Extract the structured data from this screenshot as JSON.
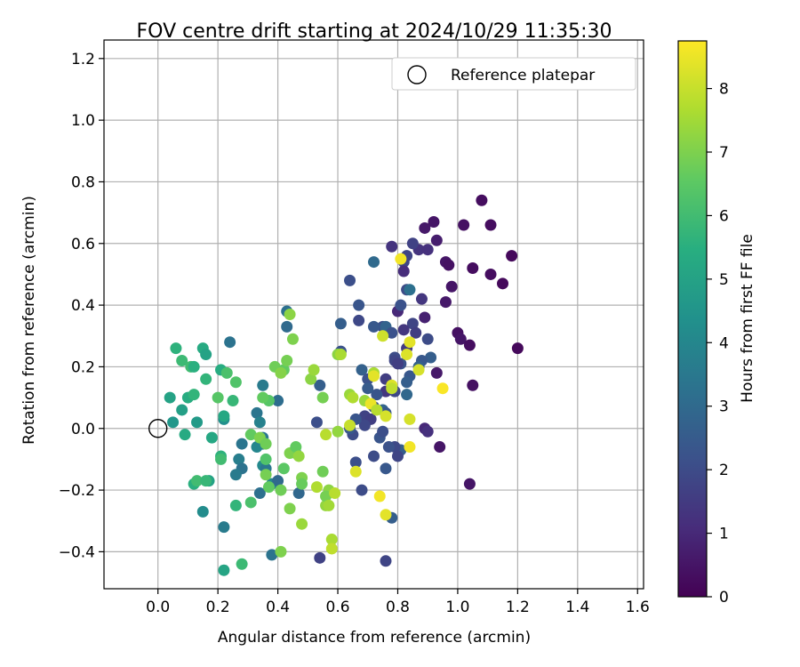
{
  "chart_data": {
    "type": "scatter",
    "title": "FOV centre drift starting at 2024/10/29 11:35:30",
    "xlabel": "Angular distance from reference (arcmin)",
    "ylabel": "Rotation from reference (arcmin)",
    "xlim": [
      -0.18,
      1.62
    ],
    "ylim": [
      -0.52,
      1.26
    ],
    "xticks": [
      "0.0",
      "0.2",
      "0.4",
      "0.6",
      "0.8",
      "1.0",
      "1.2",
      "1.4",
      "1.6"
    ],
    "xtick_values": [
      0,
      0.2,
      0.4,
      0.6,
      0.8,
      1.0,
      1.2,
      1.4,
      1.6
    ],
    "yticks": [
      "−0.4",
      "−0.2",
      "0.0",
      "0.2",
      "0.4",
      "0.6",
      "0.8",
      "1.0",
      "1.2"
    ],
    "ytick_values": [
      -0.4,
      -0.2,
      0,
      0.2,
      0.4,
      0.6,
      0.8,
      1.0,
      1.2
    ],
    "grid": true,
    "legend": {
      "placement": "top-right",
      "label": "Reference platepar"
    },
    "reference_point": {
      "x": 0.0,
      "y": 0.0
    },
    "colorbar": {
      "label": "Hours from first FF file",
      "colormap": "viridis",
      "range": [
        0,
        8.75
      ],
      "ticks": [
        "0",
        "1",
        "2",
        "3",
        "4",
        "5",
        "6",
        "7",
        "8"
      ],
      "tick_values": [
        0,
        1,
        2,
        3,
        4,
        5,
        6,
        7,
        8
      ]
    },
    "points": [
      {
        "x": 1.08,
        "y": 0.74,
        "h": 0.3
      },
      {
        "x": 1.11,
        "y": 0.66,
        "h": 0.3
      },
      {
        "x": 1.02,
        "y": 0.66,
        "h": 0.4
      },
      {
        "x": 0.92,
        "y": 0.67,
        "h": 0.5
      },
      {
        "x": 0.89,
        "y": 0.65,
        "h": 0.6
      },
      {
        "x": 0.93,
        "y": 0.61,
        "h": 0.7
      },
      {
        "x": 0.96,
        "y": 0.54,
        "h": 0.5
      },
      {
        "x": 0.97,
        "y": 0.53,
        "h": 0.4
      },
      {
        "x": 1.05,
        "y": 0.52,
        "h": 0.3
      },
      {
        "x": 1.11,
        "y": 0.5,
        "h": 0.3
      },
      {
        "x": 1.15,
        "y": 0.47,
        "h": 0.2
      },
      {
        "x": 1.18,
        "y": 0.56,
        "h": 0.2
      },
      {
        "x": 0.98,
        "y": 0.46,
        "h": 0.5
      },
      {
        "x": 0.96,
        "y": 0.41,
        "h": 0.6
      },
      {
        "x": 1.0,
        "y": 0.31,
        "h": 0.4
      },
      {
        "x": 1.01,
        "y": 0.29,
        "h": 0.5
      },
      {
        "x": 1.04,
        "y": 0.27,
        "h": 0.3
      },
      {
        "x": 1.2,
        "y": 0.26,
        "h": 0.2
      },
      {
        "x": 0.89,
        "y": 0.36,
        "h": 0.8
      },
      {
        "x": 0.8,
        "y": 0.38,
        "h": 1.0
      },
      {
        "x": 0.87,
        "y": 0.58,
        "h": 1.3
      },
      {
        "x": 0.9,
        "y": 0.58,
        "h": 1.2
      },
      {
        "x": 0.88,
        "y": 0.42,
        "h": 1.4
      },
      {
        "x": 1.05,
        "y": 0.14,
        "h": 0.4
      },
      {
        "x": 0.93,
        "y": 0.18,
        "h": 0.6
      },
      {
        "x": 0.94,
        "y": -0.06,
        "h": 0.5
      },
      {
        "x": 0.89,
        "y": 0.0,
        "h": 1.0
      },
      {
        "x": 0.9,
        "y": -0.01,
        "h": 1.2
      },
      {
        "x": 1.04,
        "y": -0.18,
        "h": 0.5
      },
      {
        "x": 0.78,
        "y": 0.59,
        "h": 1.3
      },
      {
        "x": 0.83,
        "y": 0.56,
        "h": 1.8
      },
      {
        "x": 0.82,
        "y": 0.54,
        "h": 1.8
      },
      {
        "x": 0.82,
        "y": 0.51,
        "h": 1.1
      },
      {
        "x": 0.85,
        "y": 0.6,
        "h": 1.7
      },
      {
        "x": 0.83,
        "y": 0.45,
        "h": 2.0
      },
      {
        "x": 0.84,
        "y": 0.45,
        "h": 3.2
      },
      {
        "x": 0.75,
        "y": 0.33,
        "h": 2.1
      },
      {
        "x": 0.72,
        "y": 0.33,
        "h": 2.4
      },
      {
        "x": 0.76,
        "y": 0.33,
        "h": 2.8
      },
      {
        "x": 0.78,
        "y": 0.31,
        "h": 2.2
      },
      {
        "x": 0.81,
        "y": 0.4,
        "h": 2.2
      },
      {
        "x": 0.85,
        "y": 0.34,
        "h": 1.8
      },
      {
        "x": 0.86,
        "y": 0.31,
        "h": 1.6
      },
      {
        "x": 0.83,
        "y": 0.26,
        "h": 1.5
      },
      {
        "x": 0.82,
        "y": 0.32,
        "h": 1.4
      },
      {
        "x": 0.9,
        "y": 0.29,
        "h": 2.0
      },
      {
        "x": 0.91,
        "y": 0.23,
        "h": 2.6
      },
      {
        "x": 0.88,
        "y": 0.22,
        "h": 2.4
      },
      {
        "x": 0.87,
        "y": 0.2,
        "h": 2.7
      },
      {
        "x": 0.79,
        "y": 0.23,
        "h": 2.0
      },
      {
        "x": 0.79,
        "y": 0.22,
        "h": 1.8
      },
      {
        "x": 0.81,
        "y": 0.21,
        "h": 2.2
      },
      {
        "x": 0.76,
        "y": 0.16,
        "h": 1.6
      },
      {
        "x": 0.79,
        "y": 0.12,
        "h": 1.9
      },
      {
        "x": 0.76,
        "y": 0.12,
        "h": 1.4
      },
      {
        "x": 0.73,
        "y": 0.11,
        "h": 2.3
      },
      {
        "x": 0.8,
        "y": 0.21,
        "h": 1.6
      },
      {
        "x": 0.84,
        "y": 0.17,
        "h": 2.4
      },
      {
        "x": 0.83,
        "y": 0.15,
        "h": 2.6
      },
      {
        "x": 0.83,
        "y": 0.11,
        "h": 2.9
      },
      {
        "x": 0.68,
        "y": 0.19,
        "h": 2.7
      },
      {
        "x": 0.7,
        "y": 0.16,
        "h": 2.2
      },
      {
        "x": 0.7,
        "y": 0.13,
        "h": 2.5
      },
      {
        "x": 0.75,
        "y": 0.06,
        "h": 2.8
      },
      {
        "x": 0.76,
        "y": 0.05,
        "h": 2.4
      },
      {
        "x": 0.72,
        "y": 0.07,
        "h": 2.2
      },
      {
        "x": 0.69,
        "y": 0.04,
        "h": 1.7
      },
      {
        "x": 0.71,
        "y": 0.03,
        "h": 1.6
      },
      {
        "x": 0.69,
        "y": 0.01,
        "h": 1.9
      },
      {
        "x": 0.65,
        "y": -0.02,
        "h": 2.0
      },
      {
        "x": 0.74,
        "y": -0.03,
        "h": 2.3
      },
      {
        "x": 0.75,
        "y": -0.01,
        "h": 2.1
      },
      {
        "x": 0.81,
        "y": -0.07,
        "h": 2.6
      },
      {
        "x": 0.79,
        "y": -0.06,
        "h": 1.9
      },
      {
        "x": 0.77,
        "y": -0.06,
        "h": 2.2
      },
      {
        "x": 0.72,
        "y": -0.09,
        "h": 2.0
      },
      {
        "x": 0.8,
        "y": -0.09,
        "h": 1.8
      },
      {
        "x": 0.66,
        "y": -0.11,
        "h": 2.1
      },
      {
        "x": 0.76,
        "y": -0.13,
        "h": 2.4
      },
      {
        "x": 0.68,
        "y": -0.2,
        "h": 2.0
      },
      {
        "x": 0.78,
        "y": -0.29,
        "h": 2.6
      },
      {
        "x": 0.76,
        "y": -0.43,
        "h": 1.8
      },
      {
        "x": 0.54,
        "y": -0.42,
        "h": 1.7
      },
      {
        "x": 0.64,
        "y": 0.48,
        "h": 2.1
      },
      {
        "x": 0.67,
        "y": 0.4,
        "h": 2.3
      },
      {
        "x": 0.61,
        "y": 0.34,
        "h": 2.6
      },
      {
        "x": 0.67,
        "y": 0.35,
        "h": 1.9
      },
      {
        "x": 0.72,
        "y": 0.54,
        "h": 3.0
      },
      {
        "x": 0.61,
        "y": 0.25,
        "h": 2.2
      },
      {
        "x": 0.54,
        "y": 0.14,
        "h": 2.6
      },
      {
        "x": 0.53,
        "y": 0.02,
        "h": 2.1
      },
      {
        "x": 0.66,
        "y": 0.03,
        "h": 2.3
      },
      {
        "x": 0.64,
        "y": 0.0,
        "h": 2.4
      },
      {
        "x": 0.43,
        "y": 0.38,
        "h": 3.2
      },
      {
        "x": 0.43,
        "y": 0.33,
        "h": 3.0
      },
      {
        "x": 0.4,
        "y": 0.09,
        "h": 3.1
      },
      {
        "x": 0.24,
        "y": 0.28,
        "h": 3.3
      },
      {
        "x": 0.35,
        "y": 0.14,
        "h": 3.6
      },
      {
        "x": 0.33,
        "y": 0.05,
        "h": 3.4
      },
      {
        "x": 0.34,
        "y": 0.02,
        "h": 3.8
      },
      {
        "x": 0.35,
        "y": -0.03,
        "h": 3.5
      },
      {
        "x": 0.35,
        "y": -0.05,
        "h": 3.2
      },
      {
        "x": 0.33,
        "y": -0.06,
        "h": 4.0
      },
      {
        "x": 0.28,
        "y": -0.05,
        "h": 3.4
      },
      {
        "x": 0.27,
        "y": -0.1,
        "h": 3.7
      },
      {
        "x": 0.28,
        "y": -0.13,
        "h": 3.3
      },
      {
        "x": 0.35,
        "y": -0.12,
        "h": 4.1
      },
      {
        "x": 0.36,
        "y": -0.13,
        "h": 3.5
      },
      {
        "x": 0.26,
        "y": -0.15,
        "h": 3.6
      },
      {
        "x": 0.34,
        "y": -0.21,
        "h": 3.2
      },
      {
        "x": 0.38,
        "y": -0.18,
        "h": 4.0
      },
      {
        "x": 0.4,
        "y": -0.17,
        "h": 3.0
      },
      {
        "x": 0.46,
        "y": -0.08,
        "h": 3.4
      },
      {
        "x": 0.47,
        "y": -0.21,
        "h": 2.9
      },
      {
        "x": 0.22,
        "y": -0.32,
        "h": 3.6
      },
      {
        "x": 0.38,
        "y": -0.41,
        "h": 3.3
      },
      {
        "x": 0.15,
        "y": -0.27,
        "h": 4.2
      },
      {
        "x": 0.22,
        "y": 0.03,
        "h": 4.3
      },
      {
        "x": 0.22,
        "y": 0.04,
        "h": 5.2
      },
      {
        "x": 0.13,
        "y": 0.02,
        "h": 4.7
      },
      {
        "x": 0.05,
        "y": 0.02,
        "h": 4.6
      },
      {
        "x": 0.08,
        "y": 0.06,
        "h": 4.9
      },
      {
        "x": 0.04,
        "y": 0.1,
        "h": 5.0
      },
      {
        "x": 0.1,
        "y": 0.1,
        "h": 5.4
      },
      {
        "x": 0.12,
        "y": 0.11,
        "h": 5.7
      },
      {
        "x": 0.09,
        "y": -0.02,
        "h": 5.3
      },
      {
        "x": 0.18,
        "y": -0.03,
        "h": 5.2
      },
      {
        "x": 0.12,
        "y": -0.18,
        "h": 5.5
      },
      {
        "x": 0.13,
        "y": -0.17,
        "h": 6.0
      },
      {
        "x": 0.17,
        "y": -0.17,
        "h": 5.0
      },
      {
        "x": 0.16,
        "y": -0.17,
        "h": 5.8
      },
      {
        "x": 0.21,
        "y": -0.09,
        "h": 5.6
      },
      {
        "x": 0.21,
        "y": -0.1,
        "h": 6.0
      },
      {
        "x": 0.26,
        "y": -0.25,
        "h": 5.7
      },
      {
        "x": 0.22,
        "y": -0.46,
        "h": 5.1
      },
      {
        "x": 0.28,
        "y": -0.44,
        "h": 5.9
      },
      {
        "x": 0.06,
        "y": 0.26,
        "h": 5.6
      },
      {
        "x": 0.08,
        "y": 0.22,
        "h": 5.9
      },
      {
        "x": 0.15,
        "y": 0.26,
        "h": 5.3
      },
      {
        "x": 0.16,
        "y": 0.24,
        "h": 5.0
      },
      {
        "x": 0.11,
        "y": 0.2,
        "h": 6.0
      },
      {
        "x": 0.12,
        "y": 0.2,
        "h": 5.5
      },
      {
        "x": 0.21,
        "y": 0.19,
        "h": 5.4
      },
      {
        "x": 0.23,
        "y": 0.18,
        "h": 6.2
      },
      {
        "x": 0.26,
        "y": 0.15,
        "h": 6.3
      },
      {
        "x": 0.16,
        "y": 0.16,
        "h": 5.7
      },
      {
        "x": 0.2,
        "y": 0.1,
        "h": 6.4
      },
      {
        "x": 0.25,
        "y": 0.09,
        "h": 5.8
      },
      {
        "x": 0.37,
        "y": 0.09,
        "h": 6.4
      },
      {
        "x": 0.35,
        "y": 0.1,
        "h": 6.6
      },
      {
        "x": 0.39,
        "y": 0.2,
        "h": 6.8
      },
      {
        "x": 0.42,
        "y": 0.19,
        "h": 6.6
      },
      {
        "x": 0.43,
        "y": 0.22,
        "h": 6.9
      },
      {
        "x": 0.44,
        "y": 0.37,
        "h": 7.2
      },
      {
        "x": 0.45,
        "y": 0.29,
        "h": 7.0
      },
      {
        "x": 0.41,
        "y": 0.18,
        "h": 7.1
      },
      {
        "x": 0.31,
        "y": -0.02,
        "h": 6.6
      },
      {
        "x": 0.34,
        "y": -0.03,
        "h": 7.0
      },
      {
        "x": 0.36,
        "y": -0.05,
        "h": 6.8
      },
      {
        "x": 0.36,
        "y": -0.1,
        "h": 6.3
      },
      {
        "x": 0.36,
        "y": -0.15,
        "h": 6.9
      },
      {
        "x": 0.37,
        "y": -0.19,
        "h": 6.6
      },
      {
        "x": 0.31,
        "y": -0.24,
        "h": 6.2
      },
      {
        "x": 0.42,
        "y": -0.13,
        "h": 6.5
      },
      {
        "x": 0.44,
        "y": -0.08,
        "h": 7.0
      },
      {
        "x": 0.46,
        "y": -0.06,
        "h": 6.6
      },
      {
        "x": 0.47,
        "y": -0.09,
        "h": 7.3
      },
      {
        "x": 0.48,
        "y": -0.16,
        "h": 7.0
      },
      {
        "x": 0.48,
        "y": -0.18,
        "h": 6.7
      },
      {
        "x": 0.41,
        "y": -0.2,
        "h": 6.8
      },
      {
        "x": 0.44,
        "y": -0.26,
        "h": 7.0
      },
      {
        "x": 0.48,
        "y": -0.31,
        "h": 7.4
      },
      {
        "x": 0.41,
        "y": -0.4,
        "h": 7.0
      },
      {
        "x": 0.51,
        "y": 0.16,
        "h": 7.2
      },
      {
        "x": 0.52,
        "y": 0.19,
        "h": 7.4
      },
      {
        "x": 0.55,
        "y": 0.1,
        "h": 6.9
      },
      {
        "x": 0.56,
        "y": -0.02,
        "h": 7.8
      },
      {
        "x": 0.53,
        "y": -0.19,
        "h": 7.7
      },
      {
        "x": 0.55,
        "y": -0.14,
        "h": 6.8
      },
      {
        "x": 0.56,
        "y": -0.25,
        "h": 7.3
      },
      {
        "x": 0.57,
        "y": -0.2,
        "h": 7.2
      },
      {
        "x": 0.56,
        "y": -0.22,
        "h": 6.9
      },
      {
        "x": 0.57,
        "y": -0.25,
        "h": 7.5
      },
      {
        "x": 0.58,
        "y": -0.36,
        "h": 7.6
      },
      {
        "x": 0.58,
        "y": -0.39,
        "h": 7.9
      },
      {
        "x": 0.59,
        "y": -0.21,
        "h": 7.8
      },
      {
        "x": 0.6,
        "y": -0.01,
        "h": 7.3
      },
      {
        "x": 0.6,
        "y": 0.24,
        "h": 7.2
      },
      {
        "x": 0.61,
        "y": 0.24,
        "h": 7.6
      },
      {
        "x": 0.64,
        "y": 0.11,
        "h": 7.4
      },
      {
        "x": 0.65,
        "y": 0.1,
        "h": 7.7
      },
      {
        "x": 0.64,
        "y": 0.01,
        "h": 8.0
      },
      {
        "x": 0.66,
        "y": -0.14,
        "h": 8.3
      },
      {
        "x": 0.69,
        "y": 0.09,
        "h": 7.4
      },
      {
        "x": 0.72,
        "y": 0.18,
        "h": 7.6
      },
      {
        "x": 0.72,
        "y": 0.17,
        "h": 8.4
      },
      {
        "x": 0.71,
        "y": 0.08,
        "h": 8.5
      },
      {
        "x": 0.73,
        "y": 0.06,
        "h": 7.8
      },
      {
        "x": 0.75,
        "y": 0.3,
        "h": 8.1
      },
      {
        "x": 0.78,
        "y": 0.14,
        "h": 8.3
      },
      {
        "x": 0.78,
        "y": 0.13,
        "h": 7.9
      },
      {
        "x": 0.76,
        "y": 0.04,
        "h": 8.2
      },
      {
        "x": 0.74,
        "y": -0.22,
        "h": 8.6
      },
      {
        "x": 0.76,
        "y": -0.28,
        "h": 8.4
      },
      {
        "x": 0.81,
        "y": 0.55,
        "h": 8.6
      },
      {
        "x": 0.84,
        "y": 0.28,
        "h": 8.4
      },
      {
        "x": 0.83,
        "y": 0.24,
        "h": 8.3
      },
      {
        "x": 0.87,
        "y": 0.19,
        "h": 8.2
      },
      {
        "x": 0.84,
        "y": 0.03,
        "h": 8.2
      },
      {
        "x": 0.84,
        "y": -0.06,
        "h": 8.6
      },
      {
        "x": 0.95,
        "y": 0.13,
        "h": 8.7
      }
    ]
  }
}
